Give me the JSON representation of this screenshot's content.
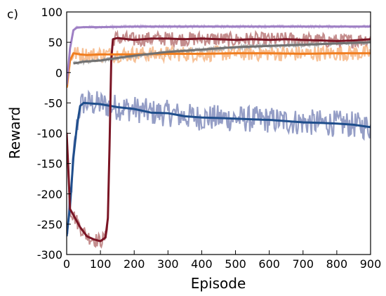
{
  "panel_label": "c)",
  "chart_data": {
    "type": "line",
    "title": "",
    "xlabel": "Episode",
    "ylabel": "Reward",
    "xlim": [
      0,
      900
    ],
    "ylim": [
      -300,
      100
    ],
    "xticks": [
      0,
      100,
      200,
      300,
      400,
      500,
      600,
      700,
      800,
      900
    ],
    "yticks": [
      -300,
      -250,
      -200,
      -150,
      -100,
      -50,
      0,
      50,
      100
    ],
    "grid": false,
    "legend": "none",
    "series": [
      {
        "color": "#1f4e8c",
        "raw_color": "#7b86b8",
        "points": [
          [
            0,
            -270
          ],
          [
            10,
            -220
          ],
          [
            20,
            -140
          ],
          [
            30,
            -90
          ],
          [
            40,
            -55
          ],
          [
            50,
            -50
          ],
          [
            100,
            -52
          ],
          [
            150,
            -57
          ],
          [
            200,
            -60
          ],
          [
            250,
            -66
          ],
          [
            300,
            -67
          ],
          [
            350,
            -72
          ],
          [
            400,
            -74
          ],
          [
            450,
            -75
          ],
          [
            500,
            -76
          ],
          [
            550,
            -77
          ],
          [
            600,
            -78
          ],
          [
            650,
            -80
          ],
          [
            700,
            -82
          ],
          [
            750,
            -83
          ],
          [
            800,
            -84
          ],
          [
            850,
            -86
          ],
          [
            900,
            -90
          ]
        ],
        "noise": 22
      },
      {
        "color": "#7a1424",
        "raw_color": "#b57070",
        "points": [
          [
            0,
            -100
          ],
          [
            5,
            -160
          ],
          [
            10,
            -225
          ],
          [
            20,
            -235
          ],
          [
            40,
            -255
          ],
          [
            60,
            -270
          ],
          [
            80,
            -275
          ],
          [
            100,
            -278
          ],
          [
            115,
            -272
          ],
          [
            122,
            -240
          ],
          [
            127,
            -120
          ],
          [
            132,
            20
          ],
          [
            137,
            55
          ],
          [
            150,
            57
          ],
          [
            200,
            54
          ],
          [
            250,
            56
          ],
          [
            300,
            56
          ],
          [
            350,
            55
          ],
          [
            400,
            56
          ],
          [
            450,
            55
          ],
          [
            500,
            54
          ],
          [
            550,
            55
          ],
          [
            600,
            54
          ],
          [
            650,
            55
          ],
          [
            700,
            54
          ],
          [
            750,
            53
          ],
          [
            800,
            52
          ],
          [
            850,
            53
          ],
          [
            900,
            55
          ]
        ],
        "noise": 12
      },
      {
        "color": "#f07d1e",
        "raw_color": "#f5b07a",
        "points": [
          [
            0,
            -25
          ],
          [
            10,
            20
          ],
          [
            20,
            32
          ],
          [
            40,
            30
          ],
          [
            60,
            29
          ],
          [
            100,
            30
          ],
          [
            150,
            30
          ],
          [
            200,
            30
          ],
          [
            300,
            31
          ],
          [
            400,
            31
          ],
          [
            500,
            32
          ],
          [
            600,
            32
          ],
          [
            700,
            31
          ],
          [
            800,
            32
          ],
          [
            900,
            32
          ]
        ],
        "noise": 13
      },
      {
        "color": "#707070",
        "raw_color": "#a5a5a5",
        "points": [
          [
            20,
            15
          ],
          [
            50,
            18
          ],
          [
            100,
            20
          ],
          [
            150,
            24
          ],
          [
            200,
            28
          ],
          [
            250,
            31
          ],
          [
            300,
            34
          ],
          [
            350,
            36
          ],
          [
            400,
            38
          ],
          [
            450,
            40
          ],
          [
            500,
            42
          ],
          [
            550,
            43
          ],
          [
            600,
            44
          ],
          [
            650,
            45
          ],
          [
            700,
            46
          ],
          [
            750,
            47
          ],
          [
            800,
            48
          ],
          [
            850,
            49
          ],
          [
            900,
            50
          ]
        ],
        "noise": 3
      },
      {
        "color": "#9e7fc4",
        "raw_color": "#c6b0de",
        "points": [
          [
            0,
            -20
          ],
          [
            10,
            40
          ],
          [
            20,
            70
          ],
          [
            30,
            74
          ],
          [
            50,
            75
          ],
          [
            100,
            75
          ],
          [
            200,
            76
          ],
          [
            300,
            76
          ],
          [
            400,
            76
          ],
          [
            500,
            76
          ],
          [
            600,
            76
          ],
          [
            700,
            76
          ],
          [
            800,
            76
          ],
          [
            900,
            76
          ]
        ],
        "noise": 2
      }
    ]
  }
}
